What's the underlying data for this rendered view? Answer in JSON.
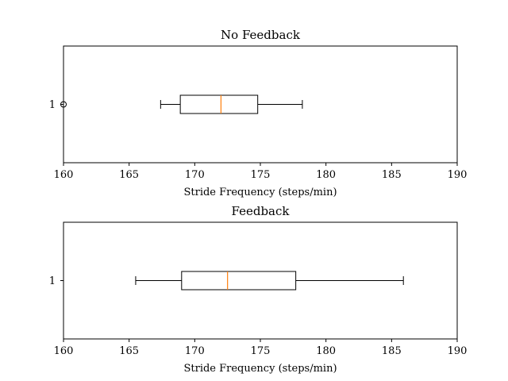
{
  "chart_data": [
    {
      "type": "boxplot",
      "title": "No Feedback",
      "xlabel": "Stride Frequency (steps/min)",
      "ylabel": "",
      "xlim": [
        160,
        190
      ],
      "xticks": [
        160,
        165,
        170,
        175,
        180,
        185,
        190
      ],
      "categories": [
        "1"
      ],
      "orientation": "horizontal",
      "box": {
        "whisker_low": 167.4,
        "q1": 168.9,
        "median": 172.0,
        "q3": 174.8,
        "whisker_high": 178.2,
        "fliers": [
          160.0
        ]
      },
      "colors": {
        "box": "#000000",
        "median": "#ff7f0e"
      }
    },
    {
      "type": "boxplot",
      "title": "Feedback",
      "xlabel": "Stride Frequency (steps/min)",
      "ylabel": "",
      "xlim": [
        160,
        190
      ],
      "xticks": [
        160,
        165,
        170,
        175,
        180,
        185,
        190
      ],
      "categories": [
        "1"
      ],
      "orientation": "horizontal",
      "box": {
        "whisker_low": 165.5,
        "q1": 169.0,
        "median": 172.5,
        "q3": 177.7,
        "whisker_high": 185.9,
        "fliers": []
      },
      "colors": {
        "box": "#000000",
        "median": "#ff7f0e"
      }
    }
  ]
}
